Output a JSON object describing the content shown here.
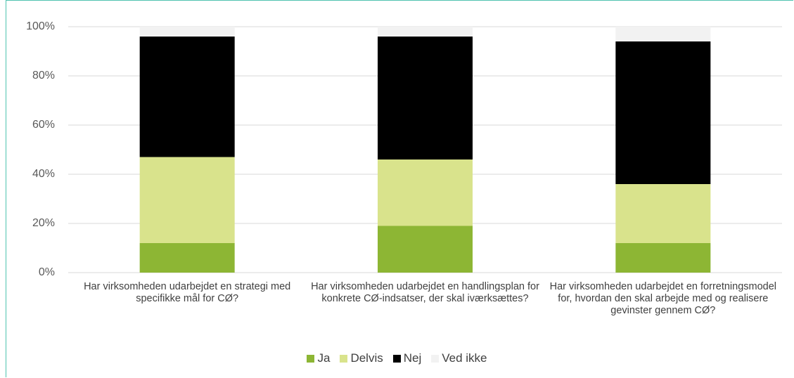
{
  "chart_data": {
    "type": "stacked_bar",
    "categories": [
      "Har virksomheden udarbejdet en strategi med specifikke mål for CØ?",
      "Har virksomheden udarbejdet en handlingsplan for konkrete CØ-indsatser, der skal iværksættes?",
      "Har virksomheden udarbejdet en forretningsmodel for, hvordan den skal arbejde med og realisere gevinster gennem CØ?"
    ],
    "series": [
      {
        "name": "Ja",
        "color": "#8db634",
        "values": [
          12,
          19,
          12
        ]
      },
      {
        "name": "Delvis",
        "color": "#d9e38c",
        "values": [
          35,
          27,
          24
        ]
      },
      {
        "name": "Nej",
        "color": "#000000",
        "values": [
          49,
          50,
          58
        ]
      },
      {
        "name": "Ved ikke",
        "color": "#f2f2f2",
        "values": [
          4,
          4,
          6
        ]
      }
    ],
    "ylim": [
      0,
      100
    ],
    "yticks": [
      {
        "value": 0,
        "label": "0%"
      },
      {
        "value": 20,
        "label": "20%"
      },
      {
        "value": 40,
        "label": "40%"
      },
      {
        "value": 60,
        "label": "60%"
      },
      {
        "value": 80,
        "label": "80%"
      },
      {
        "value": 100,
        "label": "100%"
      }
    ],
    "grid": true,
    "legend": "bottom"
  }
}
